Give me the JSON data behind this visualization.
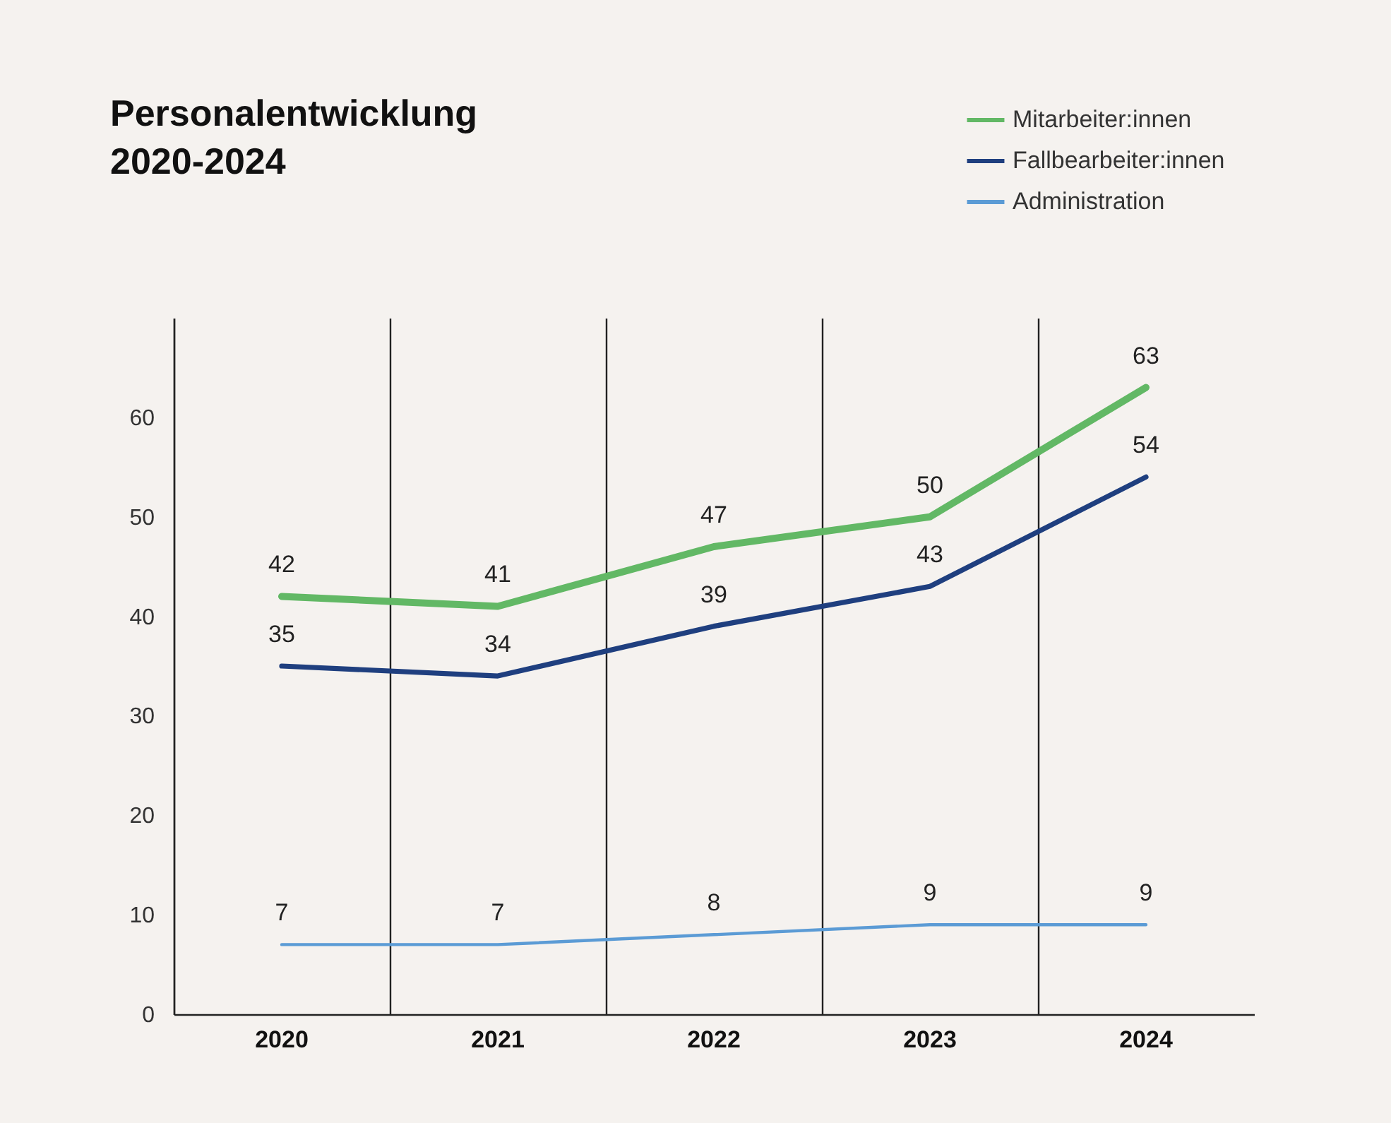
{
  "chart_data": {
    "type": "line",
    "title": "Personalentwicklung 2020-2024",
    "categories": [
      "2020",
      "2021",
      "2022",
      "2023",
      "2024"
    ],
    "series": [
      {
        "name": "Mitarbeiter:innen",
        "color": "#62b865",
        "values": [
          42,
          41,
          47,
          50,
          63
        ]
      },
      {
        "name": "Fallbearbeiter:innen",
        "color": "#1f3f7f",
        "values": [
          35,
          34,
          39,
          43,
          54
        ]
      },
      {
        "name": "Administration",
        "color": "#5b9bd5",
        "values": [
          7,
          7,
          8,
          9,
          9
        ]
      }
    ],
    "ylim": [
      0,
      70
    ],
    "yticks": [
      0,
      10,
      20,
      30,
      40,
      50,
      60
    ],
    "grid": "x",
    "legend": "top right",
    "data_labels": true,
    "marker": "none",
    "line_style": "solid"
  }
}
